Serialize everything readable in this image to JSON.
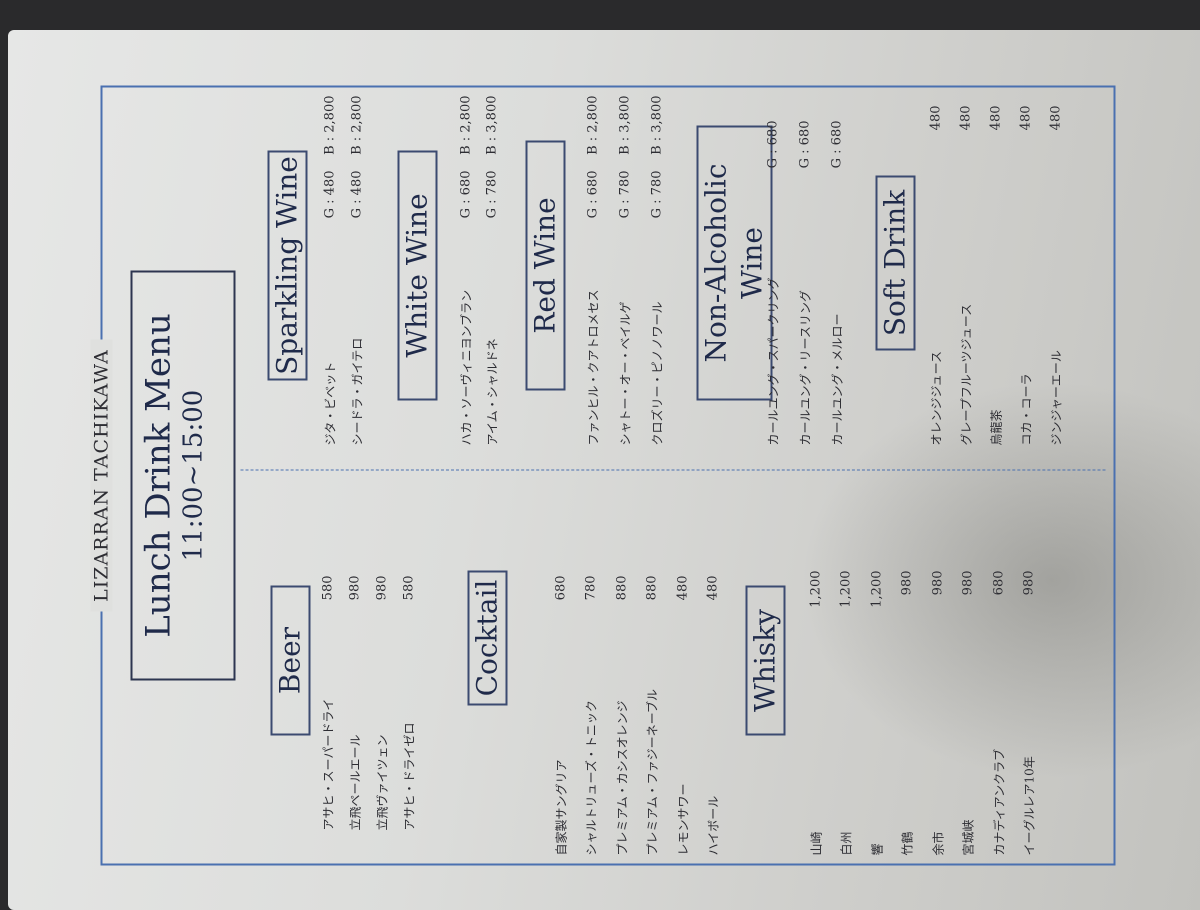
{
  "header": {
    "brand": "LIZARRAN TACHIKAWA",
    "title": "Lunch Drink Menu",
    "hours": "11:00~15:00"
  },
  "sections": {
    "beer": {
      "title": "Beer",
      "items": [
        {
          "name": "アサヒ・スーパードライ",
          "price": "580"
        },
        {
          "name": "立飛ペールエール",
          "price": "980"
        },
        {
          "name": "立飛ヴァイツェン",
          "price": "980"
        },
        {
          "name": "アサヒ・ドライゼロ",
          "price": "580"
        }
      ]
    },
    "cocktail": {
      "title": "Cocktail",
      "items": [
        {
          "name": "自家製サングリア",
          "price": "680"
        },
        {
          "name": "シャルトリューズ・トニック",
          "price": "780"
        },
        {
          "name": "プレミアム・カシスオレンジ",
          "price": "880"
        },
        {
          "name": "プレミアム・ファジーネーブル",
          "price": "880"
        },
        {
          "name": "レモンサワー",
          "price": "480"
        },
        {
          "name": "ハイボール",
          "price": "480"
        }
      ]
    },
    "whisky": {
      "title": "Whisky",
      "items": [
        {
          "name": "山崎",
          "price": "1,200"
        },
        {
          "name": "白州",
          "price": "1,200"
        },
        {
          "name": "響",
          "price": "1,200"
        },
        {
          "name": "竹鶴",
          "price": "980"
        },
        {
          "name": "余市",
          "price": "980"
        },
        {
          "name": "宮城峡",
          "price": "980"
        },
        {
          "name": "カナディアンクラブ",
          "price": "680"
        },
        {
          "name": "イーグルレア10年",
          "price": "980"
        }
      ]
    },
    "sparkling": {
      "title": "Sparkling Wine",
      "items": [
        {
          "name": "ジタ・ビベット",
          "glass": "G : 480",
          "bottle": "B : 2,800"
        },
        {
          "name": "シードラ・ガイテロ",
          "glass": "G : 480",
          "bottle": "B : 2,800"
        }
      ]
    },
    "white": {
      "title": "White Wine",
      "items": [
        {
          "name": "ハカ・ソーヴィニヨンブラン",
          "glass": "G : 680",
          "bottle": "B : 2,800"
        },
        {
          "name": "アイム・シャルドネ",
          "glass": "G : 780",
          "bottle": "B : 3,800"
        }
      ]
    },
    "red": {
      "title": "Red Wine",
      "items": [
        {
          "name": "ファンヒル・クアトロメセス",
          "glass": "G : 680",
          "bottle": "B : 2,800"
        },
        {
          "name": "シャトー・オー・ベイルゲ",
          "glass": "G : 780",
          "bottle": "B : 3,800"
        },
        {
          "name": "クロズリー・ピノノワール",
          "glass": "G : 780",
          "bottle": "B : 3,800"
        }
      ]
    },
    "nonalcoholic": {
      "title": "Non-Alcoholic Wine",
      "items": [
        {
          "name": "カールユング・スパークリング",
          "glass": "G : 680"
        },
        {
          "name": "カールユング・リースリング",
          "glass": "G : 680"
        },
        {
          "name": "カールユング・メルロー",
          "glass": "G : 680"
        }
      ]
    },
    "soft": {
      "title": "Soft Drink",
      "items": [
        {
          "name": "オレンジジュース",
          "price": "480"
        },
        {
          "name": "グレープフルーツジュース",
          "price": "480"
        },
        {
          "name": "烏龍茶",
          "price": "480"
        },
        {
          "name": "コカ・コーラ",
          "price": "480"
        },
        {
          "name": "ジンジャーエール",
          "price": "480"
        }
      ]
    }
  },
  "colors": {
    "border": "#4a70b0",
    "heading": "#1f2a4a"
  }
}
